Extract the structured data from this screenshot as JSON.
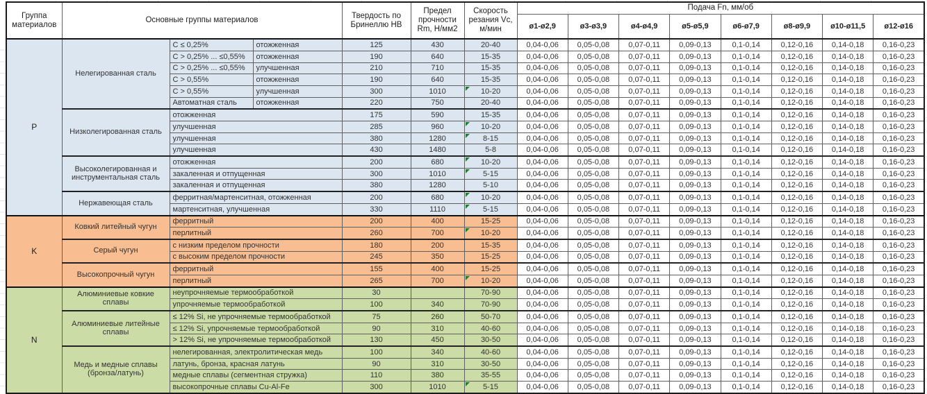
{
  "header": {
    "group_col": "Группа материалов",
    "materials_col": "Основные группы материалов",
    "hardness_col": "Твердость по Бринеллю НВ",
    "strength_col": "Предел прочности Rm, Н/мм2",
    "speed_col": "Скорость резания Vc, м/мин",
    "feed_col": "Подача Fn, мм/об",
    "feed_diameters": [
      "ø1-ø2,9",
      "ø3-ø3,9",
      "ø4-ø4,9",
      "ø5-ø5,9",
      "ø6-ø7,9",
      "ø8-ø9,9",
      "ø10-ø11,5",
      "ø12-ø16"
    ]
  },
  "feed_values": [
    "0,04-0,06",
    "0,05-0,08",
    "0,07-0,11",
    "0,09-0,13",
    "0,1-0,14",
    "0,12-0,16",
    "0,14-0,18",
    "0,16-0,23"
  ],
  "colors": {
    "steel_blue": "#dce6f1",
    "cast_iron_orange": "#f8bd90",
    "nonferrous_green": "#cbdca6",
    "note_marker_green": "#1e7e34"
  },
  "groups": [
    {
      "letter": "P",
      "color": "#dce6f1",
      "families": [
        {
          "name": "Нелегированная сталь",
          "rows": [
            {
              "sub1": "C ≤ 0,25%",
              "sub2": "отожженная",
              "hb": "125",
              "rm": "430",
              "vc": "20-40",
              "note": false
            },
            {
              "sub1": "C > 0,25% ... ≤0,55%",
              "sub2": "отожженная",
              "hb": "190",
              "rm": "640",
              "vc": "15-35",
              "note": false
            },
            {
              "sub1": "C > 0,25% ... ≤0,55%",
              "sub2": "улучшенная",
              "hb": "210",
              "rm": "710",
              "vc": "15-35",
              "note": false
            },
            {
              "sub1": "C > 0,55%",
              "sub2": "отожженная",
              "hb": "190",
              "rm": "640",
              "vc": "15-35",
              "note": false
            },
            {
              "sub1": "C > 0,55%",
              "sub2": "улучшенная",
              "hb": "300",
              "rm": "1010",
              "vc": "10-20",
              "note": true
            },
            {
              "sub1": "Автоматная сталь",
              "sub2": "отожженная",
              "hb": "220",
              "rm": "750",
              "vc": "20-40",
              "note": false
            }
          ]
        },
        {
          "name": "Низколегированная сталь",
          "rows": [
            {
              "label": "отожженная",
              "hb": "175",
              "rm": "590",
              "vc": "15-35",
              "note": false
            },
            {
              "label": "улучшенная",
              "hb": "285",
              "rm": "960",
              "vc": "10-20",
              "note": true
            },
            {
              "label": "улучшенная",
              "hb": "380",
              "rm": "1280",
              "vc": "8-15",
              "note": true
            },
            {
              "label": "улучшенная",
              "hb": "430",
              "rm": "1480",
              "vc": "5-8",
              "note": false
            }
          ]
        },
        {
          "name": "Высоколегированная и инструментальная сталь",
          "rows": [
            {
              "label": "отожженная",
              "hb": "200",
              "rm": "680",
              "vc": "10-20",
              "note": true
            },
            {
              "label": "закаленная и отпущенная",
              "hb": "300",
              "rm": "1010",
              "vc": "5-15",
              "note": true
            },
            {
              "label": "закаленная и отпущенная",
              "hb": "380",
              "rm": "1280",
              "vc": "5-10",
              "note": false
            }
          ]
        },
        {
          "name": "Нержавеющая сталь",
          "rows": [
            {
              "label": "ферритная/мартенситная, отожженная",
              "hb": "200",
              "rm": "680",
              "vc": "10-20",
              "note": true
            },
            {
              "label": "мартенситная, улучшенная",
              "hb": "330",
              "rm": "1110",
              "vc": "5-15",
              "note": true
            }
          ]
        }
      ]
    },
    {
      "letter": "K",
      "color": "#f8bd90",
      "families": [
        {
          "name": "Ковкий литейный чугун",
          "rows": [
            {
              "label": "ферритный",
              "hb": "200",
              "rm": "400",
              "vc": "15-25",
              "note": false
            },
            {
              "label": "перлитный",
              "hb": "260",
              "rm": "700",
              "vc": "10-20",
              "note": true
            }
          ]
        },
        {
          "name": "Серый чугун",
          "rows": [
            {
              "label": "с низким пределом прочности",
              "hb": "180",
              "rm": "200",
              "vc": "15-35",
              "note": false
            },
            {
              "label": "с высоким пределом прочности",
              "hb": "245",
              "rm": "350",
              "vc": "15-25",
              "note": false
            }
          ]
        },
        {
          "name": "Высокопрочный чугун",
          "rows": [
            {
              "label": "ферритный",
              "hb": "155",
              "rm": "400",
              "vc": "15-25",
              "note": false
            },
            {
              "label": "перлитный",
              "hb": "265",
              "rm": "700",
              "vc": "10-20",
              "note": true
            }
          ]
        }
      ]
    },
    {
      "letter": "N",
      "color": "#cbdca6",
      "families": [
        {
          "name": "Алюминиевые ковкие сплавы",
          "rows": [
            {
              "label": "неупрочняемые термообработкой",
              "hb": "30",
              "rm": "",
              "vc": "70-90",
              "note": false
            },
            {
              "label": "упрочняемые термообработкой",
              "hb": "100",
              "rm": "340",
              "vc": "70-90",
              "note": false
            }
          ]
        },
        {
          "name": "Алюминиевые литейные сплавы",
          "rows": [
            {
              "label": "≤ 12% Si, не упрочняемые термообработкой",
              "hb": "75",
              "rm": "260",
              "vc": "50-70",
              "note": false
            },
            {
              "label": "≤ 12% Si, упрочняемые термообработкой",
              "hb": "90",
              "rm": "310",
              "vc": "40-60",
              "note": false
            },
            {
              "label": "> 12% Si, не упрочняемые термообработкой",
              "hb": "130",
              "rm": "450",
              "vc": "30-50",
              "note": false
            }
          ]
        },
        {
          "name": "Медь и медные сплавы (бронза/латунь)",
          "rows": [
            {
              "label": "нелегированная, электролитическая медь",
              "hb": "100",
              "rm": "340",
              "vc": "40-60",
              "note": false
            },
            {
              "label": "латунь, бронза, красная латунь",
              "hb": "90",
              "rm": "310",
              "vc": "30-50",
              "note": false
            },
            {
              "label": "медные сплавы (сегментная стружка)",
              "hb": "110",
              "rm": "380",
              "vc": "35-55",
              "note": false
            },
            {
              "label": "высокопрочные сплавы Cu-Al-Fe",
              "hb": "300",
              "rm": "1010",
              "vc": "5-15",
              "note": true
            }
          ]
        }
      ]
    }
  ]
}
